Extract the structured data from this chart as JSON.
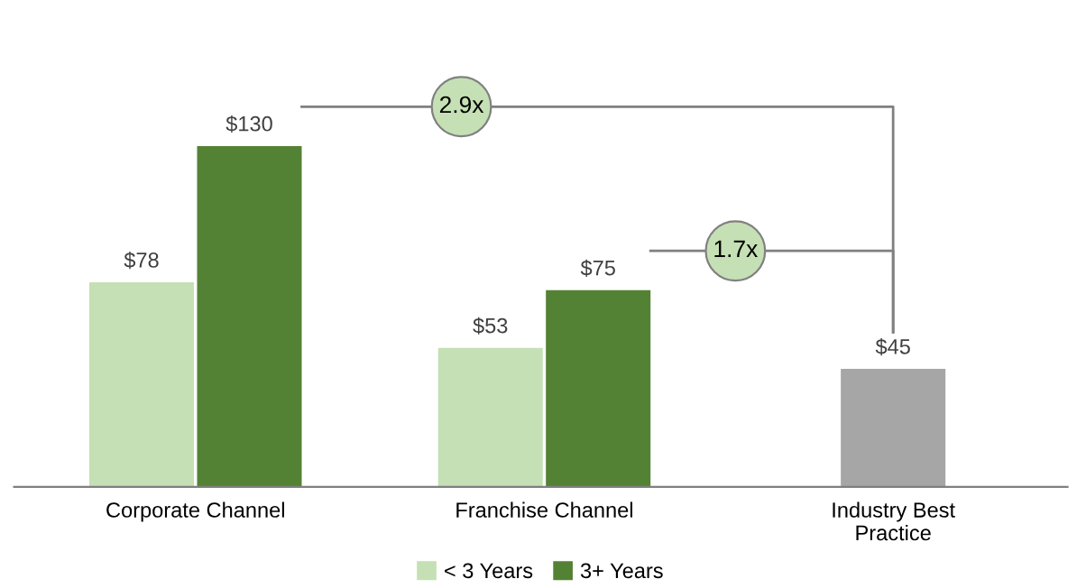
{
  "chart_data": {
    "type": "bar",
    "data_labels": true,
    "legend": "bottom",
    "grid": false,
    "categories": [
      "Corporate Channel",
      "Franchise Channel",
      "Industry Best Practice"
    ],
    "series": [
      {
        "name": "< 3 Years",
        "color": "#c5e0b4",
        "values": [
          78,
          53,
          null
        ],
        "value_labels": [
          "$78",
          "$53",
          null
        ]
      },
      {
        "name": "3+ Years",
        "color": "#548235",
        "values": [
          130,
          75,
          null
        ],
        "value_labels": [
          "$130",
          "$75",
          null
        ]
      },
      {
        "color": "#a6a6a6",
        "values": [
          null,
          null,
          45
        ],
        "value_labels": [
          null,
          null,
          "$45"
        ]
      }
    ],
    "annotations": [
      "2.9x",
      "1.7x"
    ]
  }
}
